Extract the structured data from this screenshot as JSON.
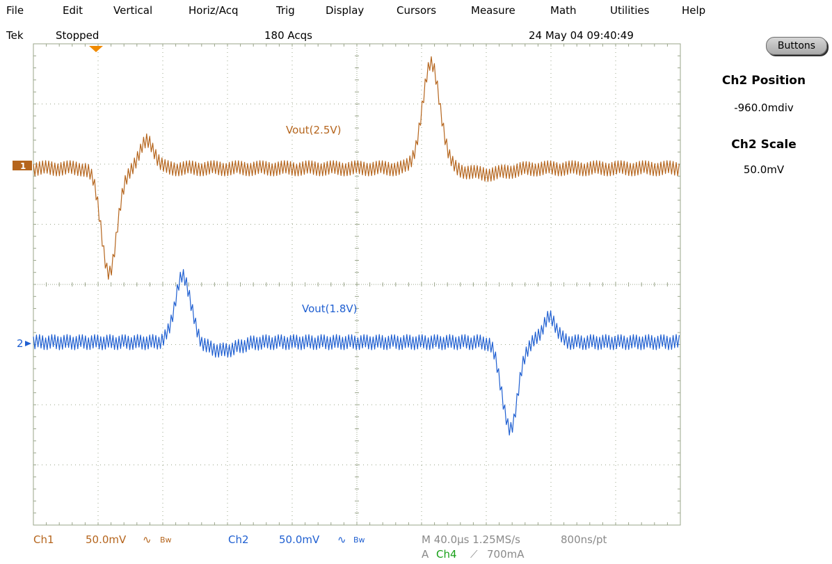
{
  "menu": [
    "File",
    "Edit",
    "Vertical",
    "Horiz/Acq",
    "Trig",
    "Display",
    "Cursors",
    "Measure",
    "Math",
    "Utilities",
    "Help"
  ],
  "status": {
    "brand": "Tek",
    "run_state": "Stopped",
    "acquisitions": "180 Acqs",
    "datetime": "24 May 04 09:40:49"
  },
  "panel": {
    "buttons_label": "Buttons",
    "position_title": "Ch2 Position",
    "position_value": "-960.0mdiv",
    "scale_title": "Ch2 Scale",
    "scale_value": "50.0mV"
  },
  "traces": {
    "ch1_label": "Vout(2.5V)",
    "ch2_label": "Vout(1.8V)",
    "ch1_marker": "1",
    "ch2_marker": "2"
  },
  "readouts": {
    "ch1_name": "Ch1",
    "ch1_scale": "50.0mV",
    "ch1_coupling_icon": "∿",
    "ch1_bw": "Bw",
    "ch2_name": "Ch2",
    "ch2_scale": "50.0mV",
    "ch2_coupling_icon": "∿",
    "ch2_bw": "Bw",
    "horizontal": "M 40.0µs 1.25MS/s",
    "resolution": "800ns/pt",
    "trigger_prefix": "A",
    "trigger_source": "Ch4",
    "trigger_slope_icon": "⟋",
    "trigger_level": "700mA"
  },
  "colors": {
    "ch1": "#b5651d",
    "ch2": "#1f5fd1",
    "grid": "#9aa58a",
    "trigger_marker": "#f08a00"
  }
}
